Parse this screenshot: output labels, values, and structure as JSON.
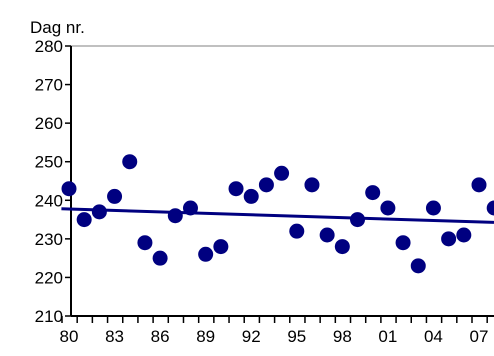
{
  "chart_data": {
    "type": "scatter",
    "y_unit_label": "Dag nr.",
    "ylim": [
      210,
      280
    ],
    "y_ticks": [
      "210",
      "220",
      "230",
      "240",
      "250",
      "260",
      "270",
      "280"
    ],
    "x_tick_labels": [
      "80",
      "83",
      "86",
      "89",
      "92",
      "95",
      "98",
      "01",
      "04",
      "07"
    ],
    "x_tick_years": [
      1980,
      1983,
      1986,
      1989,
      1992,
      1995,
      1998,
      2001,
      2004,
      2007
    ],
    "x_range": [
      1979.5,
      2007.5
    ],
    "grid": "top-line-only",
    "points": [
      {
        "x": 1980,
        "y": 243
      },
      {
        "x": 1981,
        "y": 235
      },
      {
        "x": 1982,
        "y": 237
      },
      {
        "x": 1983,
        "y": 241
      },
      {
        "x": 1984,
        "y": 250
      },
      {
        "x": 1985,
        "y": 229
      },
      {
        "x": 1986,
        "y": 225
      },
      {
        "x": 1987,
        "y": 236
      },
      {
        "x": 1988,
        "y": 238
      },
      {
        "x": 1989,
        "y": 226
      },
      {
        "x": 1990,
        "y": 228
      },
      {
        "x": 1991,
        "y": 243
      },
      {
        "x": 1992,
        "y": 241
      },
      {
        "x": 1993,
        "y": 244
      },
      {
        "x": 1994,
        "y": 247
      },
      {
        "x": 1995,
        "y": 232
      },
      {
        "x": 1996,
        "y": 244
      },
      {
        "x": 1997,
        "y": 231
      },
      {
        "x": 1998,
        "y": 228
      },
      {
        "x": 1999,
        "y": 235
      },
      {
        "x": 2000,
        "y": 242
      },
      {
        "x": 2001,
        "y": 238
      },
      {
        "x": 2002,
        "y": 229
      },
      {
        "x": 2003,
        "y": 223
      },
      {
        "x": 2004,
        "y": 238
      },
      {
        "x": 2005,
        "y": 230
      },
      {
        "x": 2006,
        "y": 231
      },
      {
        "x": 2007,
        "y": 244
      },
      {
        "x": 2008,
        "y": 238
      }
    ],
    "trendline": {
      "x_start": 1979.5,
      "y_start": 237.8,
      "x_end": 2008.5,
      "y_end": 234.2
    },
    "colors": {
      "points": "#000080",
      "trend": "#000080",
      "axis": "#000000",
      "grid": "#808080"
    }
  }
}
